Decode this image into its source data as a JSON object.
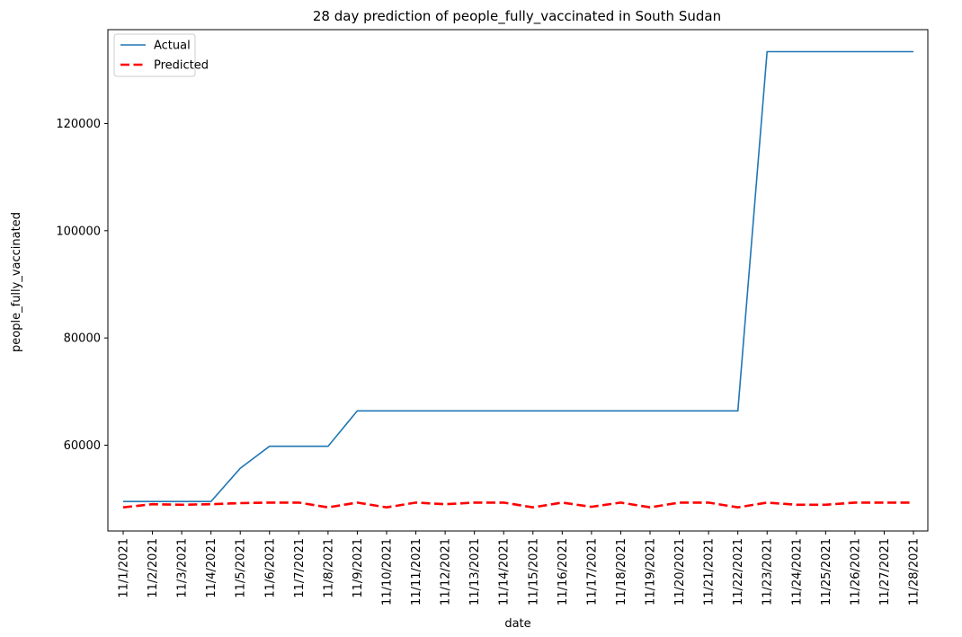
{
  "chart_data": {
    "type": "line",
    "title": "28 day prediction of people_fully_vaccinated in South Sudan",
    "xlabel": "date",
    "ylabel": "people_fully_vaccinated",
    "x": [
      "11/1/2021",
      "11/2/2021",
      "11/3/2021",
      "11/4/2021",
      "11/5/2021",
      "11/6/2021",
      "11/7/2021",
      "11/8/2021",
      "11/9/2021",
      "11/10/2021",
      "11/11/2021",
      "11/12/2021",
      "11/13/2021",
      "11/14/2021",
      "11/15/2021",
      "11/16/2021",
      "11/17/2021",
      "11/18/2021",
      "11/19/2021",
      "11/20/2021",
      "11/21/2021",
      "11/22/2021",
      "11/23/2021",
      "11/24/2021",
      "11/25/2021",
      "11/26/2021",
      "11/27/2021",
      "11/28/2021"
    ],
    "ylim": [
      44000,
      137500
    ],
    "yticks": [
      60000,
      80000,
      100000,
      120000
    ],
    "legend_position": "top-left",
    "grid": false,
    "series": [
      {
        "name": "Actual",
        "color": "#1f77b4",
        "style": "solid",
        "values": [
          49500,
          49500,
          49500,
          49500,
          55700,
          59800,
          59800,
          59800,
          66400,
          66400,
          66400,
          66400,
          66400,
          66400,
          66400,
          66400,
          66400,
          66400,
          66400,
          66400,
          66400,
          66400,
          133400,
          133400,
          133400,
          133400,
          133400,
          133400
        ]
      },
      {
        "name": "Predicted",
        "color": "#ff0000",
        "style": "dashed",
        "values": [
          48400,
          49000,
          48900,
          49000,
          49200,
          49300,
          49300,
          48400,
          49300,
          48400,
          49300,
          49000,
          49300,
          49300,
          48400,
          49300,
          48500,
          49300,
          48400,
          49300,
          49300,
          48400,
          49300,
          48900,
          48900,
          49300,
          49300,
          49300
        ]
      }
    ]
  }
}
